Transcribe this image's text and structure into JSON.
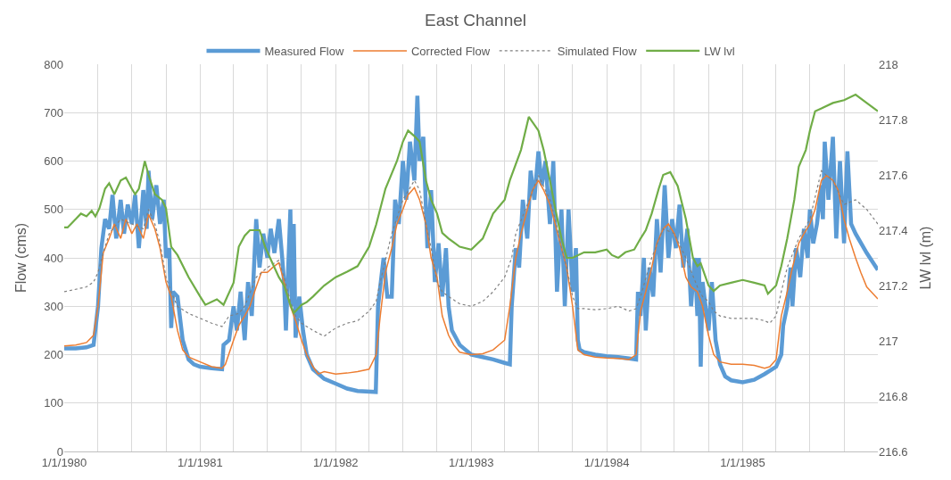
{
  "chart_data": {
    "type": "line",
    "title": "East Channel",
    "ylabel": "Flow (cms)",
    "y2label": "LW lvl (m)",
    "xlim": [
      "1980-01-01",
      "1985-12-31"
    ],
    "xticks": [
      {
        "value": "1980-01-01",
        "label": "1/1/1980"
      },
      {
        "value": "1980-04-01",
        "label": null
      },
      {
        "value": "1980-07-01",
        "label": null
      },
      {
        "value": "1980-10-01",
        "label": null
      },
      {
        "value": "1981-01-01",
        "label": "1/1/1981"
      },
      {
        "value": "1981-04-01",
        "label": null
      },
      {
        "value": "1981-07-01",
        "label": null
      },
      {
        "value": "1981-10-01",
        "label": null
      },
      {
        "value": "1982-01-01",
        "label": "1/1/1982"
      },
      {
        "value": "1982-04-01",
        "label": null
      },
      {
        "value": "1982-07-01",
        "label": null
      },
      {
        "value": "1982-10-01",
        "label": null
      },
      {
        "value": "1983-01-01",
        "label": "1/1/1983"
      },
      {
        "value": "1983-04-01",
        "label": null
      },
      {
        "value": "1983-07-01",
        "label": null
      },
      {
        "value": "1983-10-01",
        "label": null
      },
      {
        "value": "1984-01-01",
        "label": "1/1/1984"
      },
      {
        "value": "1984-04-01",
        "label": null
      },
      {
        "value": "1984-07-01",
        "label": null
      },
      {
        "value": "1984-10-01",
        "label": null
      },
      {
        "value": "1985-01-01",
        "label": "1/1/1985"
      },
      {
        "value": "1985-04-01",
        "label": null
      },
      {
        "value": "1985-07-01",
        "label": null
      },
      {
        "value": "1985-10-01",
        "label": null
      }
    ],
    "ylim": [
      0,
      800
    ],
    "yticks": [
      0,
      100,
      200,
      300,
      400,
      500,
      600,
      700,
      800
    ],
    "y2lim": [
      216.6,
      218
    ],
    "y2ticks": [
      216.6,
      216.8,
      217,
      217.2,
      217.4,
      217.6,
      217.8,
      218
    ],
    "grid": true,
    "legend": "top",
    "marker": "none",
    "series": [
      {
        "name": "Measured Flow",
        "color": "#5b9bd5",
        "line_style": "solid",
        "x": [
          "1980-01-01",
          "1980-02-01",
          "1980-03-01",
          "1980-03-20",
          "1980-04-01",
          "1980-04-10",
          "1980-04-20",
          "1980-05-01",
          "1980-05-10",
          "1980-05-20",
          "1980-06-01",
          "1980-06-10",
          "1980-06-20",
          "1980-07-01",
          "1980-07-10",
          "1980-07-20",
          "1980-08-01",
          "1980-08-10",
          "1980-08-15",
          "1980-08-25",
          "1980-09-05",
          "1980-09-15",
          "1980-09-25",
          "1980-10-01",
          "1980-10-10",
          "1980-10-15",
          "1980-10-20",
          "1980-11-01",
          "1980-11-15",
          "1980-12-01",
          "1980-12-15",
          "1981-01-01",
          "1981-02-01",
          "1981-03-01",
          "1981-03-05",
          "1981-03-20",
          "1981-04-01",
          "1981-04-10",
          "1981-04-20",
          "1981-05-01",
          "1981-05-10",
          "1981-05-20",
          "1981-06-01",
          "1981-06-10",
          "1981-06-20",
          "1981-07-01",
          "1981-07-10",
          "1981-07-20",
          "1981-08-01",
          "1981-08-10",
          "1981-08-15",
          "1981-08-20",
          "1981-09-01",
          "1981-09-05",
          "1981-09-10",
          "1981-09-15",
          "1981-09-25",
          "1981-10-05",
          "1981-10-15",
          "1981-11-01",
          "1981-12-01",
          "1982-01-01",
          "1982-02-01",
          "1982-03-01",
          "1982-04-19",
          "1982-04-25",
          "1982-05-10",
          "1982-05-20",
          "1982-06-01",
          "1982-06-10",
          "1982-06-20",
          "1982-07-01",
          "1982-07-10",
          "1982-07-20",
          "1982-08-01",
          "1982-08-09",
          "1982-08-15",
          "1982-08-25",
          "1982-09-05",
          "1982-09-15",
          "1982-09-25",
          "1982-10-05",
          "1982-10-15",
          "1982-10-25",
          "1982-11-01",
          "1982-11-10",
          "1982-12-01",
          "1983-01-01",
          "1983-02-01",
          "1983-03-01",
          "1983-04-01",
          "1983-04-15",
          "1983-04-20",
          "1983-05-01",
          "1983-05-10",
          "1983-05-20",
          "1983-06-01",
          "1983-06-10",
          "1983-06-20",
          "1983-07-01",
          "1983-07-10",
          "1983-07-20",
          "1983-08-01",
          "1983-08-10",
          "1983-08-20",
          "1983-09-01",
          "1983-09-10",
          "1983-09-20",
          "1983-10-01",
          "1983-10-10",
          "1983-10-15",
          "1983-10-20",
          "1983-11-01",
          "1983-12-01",
          "1984-01-01",
          "1984-02-01",
          "1984-03-01",
          "1984-03-20",
          "1984-03-25",
          "1984-04-01",
          "1984-04-10",
          "1984-04-15",
          "1984-04-25",
          "1984-05-05",
          "1984-05-15",
          "1984-05-25",
          "1984-06-05",
          "1984-06-15",
          "1984-06-25",
          "1984-07-05",
          "1984-07-15",
          "1984-07-25",
          "1984-08-05",
          "1984-08-15",
          "1984-08-25",
          "1984-09-01",
          "1984-09-05",
          "1984-09-10",
          "1984-09-15",
          "1984-10-01",
          "1984-10-10",
          "1984-10-20",
          "1984-11-01",
          "1984-11-15",
          "1984-12-01",
          "1985-01-01",
          "1985-02-01",
          "1985-03-01",
          "1985-04-01",
          "1985-04-15",
          "1985-04-20",
          "1985-05-01",
          "1985-05-10",
          "1985-05-15",
          "1985-05-25",
          "1985-06-05",
          "1985-06-15",
          "1985-06-25",
          "1985-07-01",
          "1985-07-10",
          "1985-07-20",
          "1985-08-01",
          "1985-08-05",
          "1985-08-10",
          "1985-08-20",
          "1985-09-01",
          "1985-09-10",
          "1985-09-20",
          "1985-10-01",
          "1985-10-10",
          "1985-10-20",
          "1985-11-01",
          "1985-12-01",
          "1985-12-31"
        ],
        "values": [
          213,
          213,
          215,
          220,
          300,
          420,
          480,
          460,
          530,
          440,
          520,
          450,
          510,
          470,
          530,
          420,
          540,
          460,
          580,
          480,
          550,
          470,
          520,
          400,
          420,
          255,
          330,
          320,
          230,
          190,
          180,
          175,
          172,
          170,
          220,
          230,
          300,
          250,
          330,
          230,
          350,
          280,
          480,
          380,
          450,
          400,
          460,
          410,
          480,
          400,
          350,
          250,
          500,
          300,
          470,
          235,
          320,
          250,
          200,
          170,
          150,
          140,
          130,
          125,
          123,
          300,
          400,
          320,
          320,
          520,
          470,
          600,
          520,
          640,
          560,
          735,
          600,
          650,
          420,
          540,
          350,
          430,
          320,
          420,
          300,
          250,
          220,
          200,
          195,
          190,
          183,
          180,
          300,
          420,
          380,
          520,
          440,
          580,
          520,
          620,
          550,
          600,
          470,
          600,
          330,
          500,
          300,
          500,
          330,
          420,
          230,
          210,
          205,
          200,
          197,
          195,
          192,
          190,
          330,
          280,
          400,
          250,
          380,
          320,
          480,
          370,
          550,
          400,
          480,
          420,
          510,
          380,
          460,
          300,
          400,
          280,
          400,
          175,
          350,
          250,
          350,
          230,
          180,
          155,
          147,
          143,
          148,
          160,
          175,
          200,
          260,
          300,
          380,
          300,
          420,
          360,
          460,
          400,
          500,
          430,
          470,
          550,
          480,
          640,
          520,
          650,
          440,
          600,
          430,
          620,
          470,
          450,
          410,
          375
        ]
      },
      {
        "name": "Corrected Flow",
        "color": "#ed7d31",
        "line_style": "solid",
        "x": [
          "1980-01-01",
          "1980-02-01",
          "1980-03-01",
          "1980-03-20",
          "1980-04-01",
          "1980-04-15",
          "1980-05-01",
          "1980-05-15",
          "1980-06-01",
          "1980-06-15",
          "1980-07-01",
          "1980-07-15",
          "1980-08-01",
          "1980-08-15",
          "1980-09-01",
          "1980-09-15",
          "1980-10-01",
          "1980-10-15",
          "1980-11-01",
          "1980-11-15",
          "1980-12-01",
          "1981-01-01",
          "1981-02-01",
          "1981-03-01",
          "1981-03-10",
          "1981-04-01",
          "1981-04-15",
          "1981-05-01",
          "1981-05-15",
          "1981-06-01",
          "1981-06-15",
          "1981-07-01",
          "1981-07-15",
          "1981-08-01",
          "1981-08-15",
          "1981-09-01",
          "1981-09-15",
          "1981-10-01",
          "1981-10-15",
          "1981-11-01",
          "1981-11-15",
          "1981-12-01",
          "1982-01-01",
          "1982-02-01",
          "1982-03-01",
          "1982-04-01",
          "1982-04-20",
          "1982-05-01",
          "1982-05-15",
          "1982-06-01",
          "1982-06-15",
          "1982-07-01",
          "1982-07-15",
          "1982-08-01",
          "1982-08-15",
          "1982-09-01",
          "1982-09-15",
          "1982-10-01",
          "1982-10-15",
          "1982-11-01",
          "1982-11-15",
          "1982-12-01",
          "1983-01-01",
          "1983-02-01",
          "1983-03-01",
          "1983-04-01",
          "1983-04-15",
          "1983-05-01",
          "1983-05-15",
          "1983-06-01",
          "1983-06-15",
          "1983-07-01",
          "1983-07-15",
          "1983-08-01",
          "1983-08-15",
          "1983-09-01",
          "1983-09-15",
          "1983-10-01",
          "1983-10-15",
          "1983-11-01",
          "1983-12-01",
          "1984-01-01",
          "1984-02-01",
          "1984-03-01",
          "1984-03-20",
          "1984-04-01",
          "1984-04-15",
          "1984-05-01",
          "1984-05-15",
          "1984-06-01",
          "1984-06-15",
          "1984-07-01",
          "1984-07-15",
          "1984-08-01",
          "1984-08-15",
          "1984-09-01",
          "1984-09-15",
          "1984-10-01",
          "1984-10-15",
          "1984-11-01",
          "1984-12-01",
          "1985-01-01",
          "1985-02-01",
          "1985-03-01",
          "1985-03-15",
          "1985-04-01",
          "1985-04-15",
          "1985-05-01",
          "1985-05-15",
          "1985-06-01",
          "1985-06-15",
          "1985-07-01",
          "1985-07-15",
          "1985-08-01",
          "1985-08-15",
          "1985-09-01",
          "1985-09-15",
          "1985-10-01",
          "1985-10-15",
          "1985-11-01",
          "1985-11-15",
          "1985-12-01",
          "1985-12-31"
        ],
        "values": [
          218,
          220,
          225,
          240,
          300,
          410,
          440,
          470,
          440,
          480,
          450,
          470,
          440,
          490,
          460,
          420,
          350,
          320,
          250,
          210,
          195,
          185,
          175,
          172,
          180,
          230,
          260,
          280,
          300,
          340,
          370,
          370,
          380,
          390,
          350,
          300,
          270,
          230,
          200,
          175,
          160,
          165,
          160,
          162,
          165,
          170,
          200,
          280,
          370,
          420,
          470,
          500,
          530,
          545,
          520,
          470,
          400,
          360,
          280,
          240,
          220,
          205,
          200,
          202,
          210,
          230,
          300,
          400,
          450,
          500,
          540,
          560,
          540,
          510,
          470,
          420,
          380,
          300,
          210,
          200,
          195,
          193,
          192,
          190,
          200,
          290,
          330,
          380,
          430,
          460,
          470,
          450,
          420,
          360,
          340,
          330,
          300,
          240,
          200,
          185,
          180,
          180,
          178,
          172,
          175,
          190,
          280,
          330,
          380,
          430,
          450,
          470,
          500,
          560,
          570,
          560,
          540,
          480,
          440,
          400,
          370,
          340,
          315
        ]
      },
      {
        "name": "Simulated Flow",
        "color": "#808080",
        "line_style": "dotted",
        "x": [
          "1980-01-01",
          "1980-02-01",
          "1980-03-01",
          "1980-03-20",
          "1980-04-01",
          "1980-04-15",
          "1980-05-01",
          "1980-06-01",
          "1980-07-01",
          "1980-08-01",
          "1980-08-15",
          "1980-09-01",
          "1980-09-15",
          "1980-10-01",
          "1980-10-15",
          "1980-11-01",
          "1980-12-01",
          "1981-01-01",
          "1981-02-01",
          "1981-03-01",
          "1981-03-20",
          "1981-04-15",
          "1981-05-01",
          "1981-06-01",
          "1981-07-01",
          "1981-08-01",
          "1981-08-15",
          "1981-09-01",
          "1981-09-15",
          "1981-10-01",
          "1981-11-01",
          "1981-12-01",
          "1982-01-01",
          "1982-02-01",
          "1982-03-01",
          "1982-04-01",
          "1982-04-20",
          "1982-05-01",
          "1982-06-01",
          "1982-07-01",
          "1982-08-01",
          "1982-08-15",
          "1982-09-01",
          "1982-09-15",
          "1982-10-01",
          "1982-10-15",
          "1982-11-01",
          "1982-12-01",
          "1983-01-01",
          "1983-02-01",
          "1983-03-01",
          "1983-04-01",
          "1983-04-20",
          "1983-05-01",
          "1983-06-01",
          "1983-07-01",
          "1983-08-01",
          "1983-08-15",
          "1983-09-01",
          "1983-09-15",
          "1983-10-01",
          "1983-10-15",
          "1983-11-01",
          "1983-12-01",
          "1984-01-01",
          "1984-02-01",
          "1984-03-01",
          "1984-03-20",
          "1984-04-01",
          "1984-05-01",
          "1984-06-01",
          "1984-07-01",
          "1984-08-01",
          "1984-09-01",
          "1984-09-15",
          "1984-10-01",
          "1984-10-15",
          "1984-11-01",
          "1984-12-01",
          "1985-01-01",
          "1985-02-01",
          "1985-03-01",
          "1985-03-15",
          "1985-04-01",
          "1985-04-15",
          "1985-05-01",
          "1985-06-01",
          "1985-07-01",
          "1985-08-01",
          "1985-08-15",
          "1985-09-01",
          "1985-10-01",
          "1985-11-01",
          "1985-12-01",
          "1985-12-31"
        ],
        "values": [
          330,
          335,
          340,
          350,
          370,
          410,
          450,
          480,
          470,
          460,
          500,
          470,
          430,
          360,
          330,
          300,
          285,
          275,
          265,
          258,
          280,
          285,
          300,
          360,
          380,
          395,
          360,
          310,
          280,
          265,
          250,
          238,
          255,
          265,
          270,
          290,
          310,
          350,
          450,
          520,
          560,
          540,
          470,
          420,
          350,
          330,
          320,
          305,
          300,
          310,
          330,
          360,
          400,
          450,
          510,
          570,
          520,
          480,
          420,
          380,
          320,
          295,
          295,
          293,
          295,
          300,
          290,
          295,
          320,
          400,
          460,
          450,
          400,
          340,
          320,
          310,
          290,
          280,
          275,
          275,
          275,
          270,
          265,
          280,
          330,
          380,
          440,
          480,
          580,
          570,
          560,
          510,
          520,
          500,
          470
        ]
      },
      {
        "name": "LW lvl",
        "color": "#70ad47",
        "line_style": "solid",
        "axis": "y2",
        "x": [
          "1980-01-01",
          "1980-01-10",
          "1980-02-01",
          "1980-02-15",
          "1980-03-01",
          "1980-03-15",
          "1980-03-25",
          "1980-04-05",
          "1980-04-20",
          "1980-05-01",
          "1980-05-15",
          "1980-06-01",
          "1980-06-15",
          "1980-07-01",
          "1980-07-10",
          "1980-07-20",
          "1980-08-05",
          "1980-08-15",
          "1980-09-01",
          "1980-09-20",
          "1980-10-01",
          "1980-10-15",
          "1980-11-01",
          "1980-12-01",
          "1981-01-01",
          "1981-01-15",
          "1981-02-15",
          "1981-03-05",
          "1981-04-01",
          "1981-04-15",
          "1981-05-01",
          "1981-05-15",
          "1981-06-10",
          "1981-06-25",
          "1981-07-15",
          "1981-08-01",
          "1981-08-15",
          "1981-09-01",
          "1981-09-10",
          "1981-10-01",
          "1981-10-15",
          "1981-11-01",
          "1981-12-01",
          "1982-01-01",
          "1982-02-01",
          "1982-03-01",
          "1982-04-01",
          "1982-04-20",
          "1982-05-15",
          "1982-06-15",
          "1982-07-01",
          "1982-07-15",
          "1982-08-01",
          "1982-08-15",
          "1982-09-01",
          "1982-09-15",
          "1982-10-01",
          "1982-10-15",
          "1982-11-01",
          "1982-12-01",
          "1983-01-01",
          "1983-02-01",
          "1983-03-01",
          "1983-04-01",
          "1983-04-15",
          "1983-05-15",
          "1983-06-05",
          "1983-07-01",
          "1983-07-15",
          "1983-08-01",
          "1983-08-15",
          "1983-09-01",
          "1983-09-15",
          "1983-10-01",
          "1983-11-01",
          "1983-12-01",
          "1984-01-01",
          "1984-01-15",
          "1984-02-01",
          "1984-02-20",
          "1984-03-15",
          "1984-04-01",
          "1984-04-15",
          "1984-05-01",
          "1984-05-20",
          "1984-06-01",
          "1984-06-20",
          "1984-07-10",
          "1984-08-01",
          "1984-08-20",
          "1984-09-01",
          "1984-09-10",
          "1984-10-01",
          "1984-10-15",
          "1984-11-01",
          "1984-12-01",
          "1985-01-01",
          "1985-02-01",
          "1985-03-01",
          "1985-03-10",
          "1985-04-01",
          "1985-04-15",
          "1985-05-01",
          "1985-05-20",
          "1985-06-01",
          "1985-06-20",
          "1985-07-01",
          "1985-07-15",
          "1985-08-01",
          "1985-09-01",
          "1985-10-01",
          "1985-11-01",
          "1985-12-01",
          "1985-12-31"
        ],
        "values": [
          217.41,
          217.41,
          217.44,
          217.46,
          217.45,
          217.47,
          217.45,
          217.48,
          217.55,
          217.57,
          217.53,
          217.58,
          217.59,
          217.55,
          217.53,
          217.55,
          217.65,
          217.6,
          217.53,
          217.51,
          217.48,
          217.34,
          217.31,
          217.23,
          217.16,
          217.13,
          217.15,
          217.13,
          217.21,
          217.34,
          217.38,
          217.4,
          217.4,
          217.34,
          217.28,
          217.23,
          217.2,
          217.13,
          217.1,
          217.13,
          217.14,
          217.16,
          217.2,
          217.23,
          217.25,
          217.27,
          217.34,
          217.42,
          217.55,
          217.65,
          217.72,
          217.76,
          217.74,
          217.72,
          217.58,
          217.51,
          217.46,
          217.39,
          217.37,
          217.34,
          217.33,
          217.37,
          217.46,
          217.51,
          217.58,
          217.69,
          217.81,
          217.76,
          217.69,
          217.58,
          217.48,
          217.37,
          217.3,
          217.3,
          217.32,
          217.32,
          217.33,
          217.31,
          217.3,
          217.32,
          217.33,
          217.37,
          217.4,
          217.46,
          217.55,
          217.6,
          217.61,
          217.56,
          217.44,
          217.3,
          217.27,
          217.28,
          217.2,
          217.18,
          217.2,
          217.21,
          217.22,
          217.21,
          217.2,
          217.17,
          217.2,
          217.27,
          217.37,
          217.51,
          217.63,
          217.69,
          217.76,
          217.83,
          217.84,
          217.86,
          217.87,
          217.89,
          217.86,
          217.83
        ]
      }
    ]
  }
}
